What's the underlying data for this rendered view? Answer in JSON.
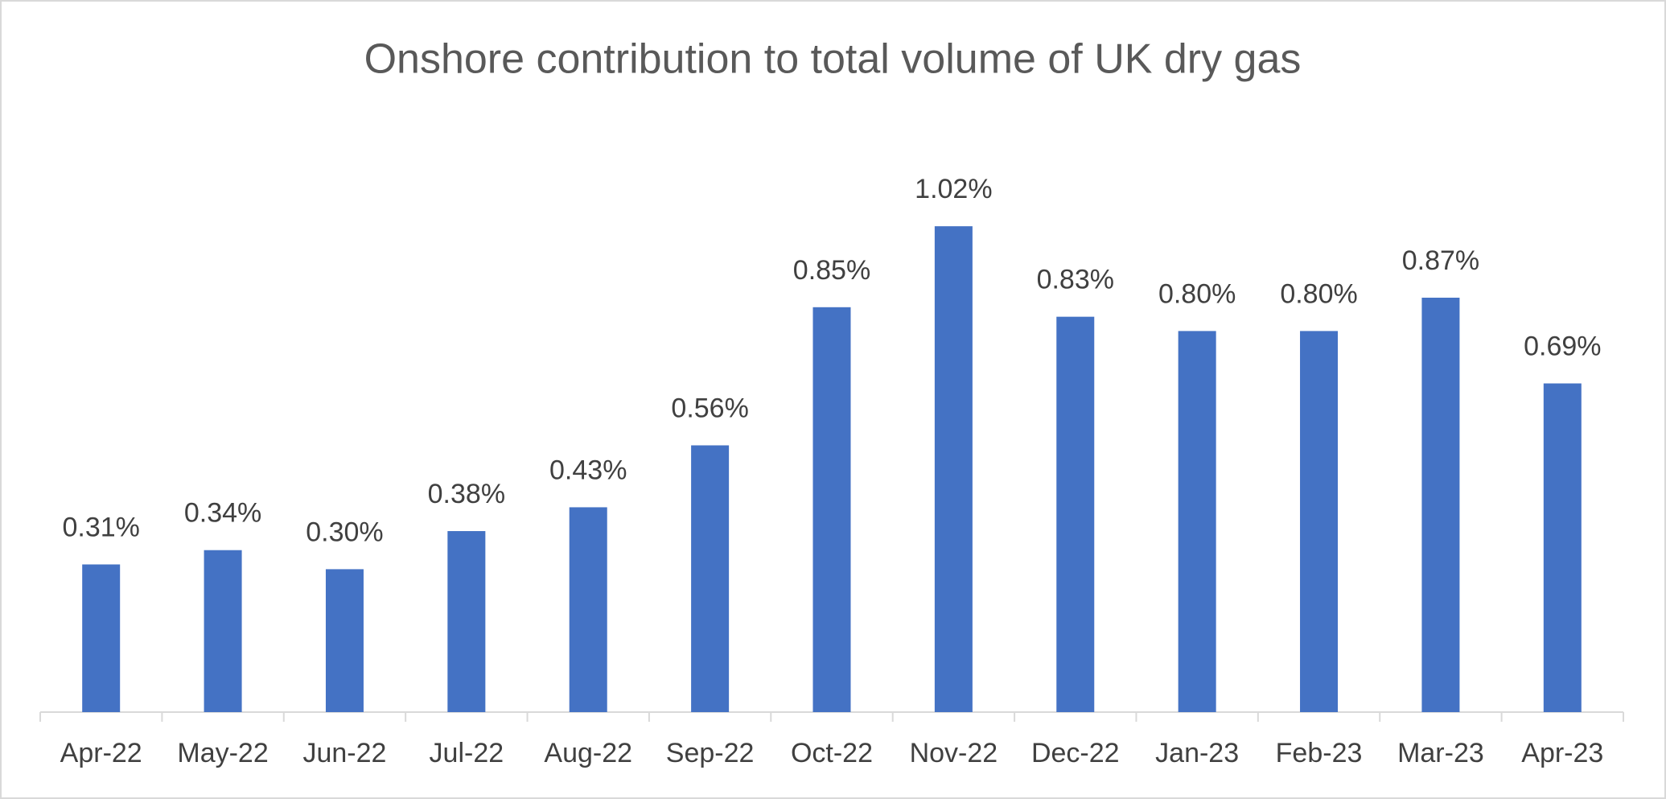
{
  "chart_data": {
    "type": "bar",
    "title": "Onshore contribution to total volume of UK dry gas",
    "categories": [
      "Apr-22",
      "May-22",
      "Jun-22",
      "Jul-22",
      "Aug-22",
      "Sep-22",
      "Oct-22",
      "Nov-22",
      "Dec-22",
      "Jan-23",
      "Feb-23",
      "Mar-23",
      "Apr-23"
    ],
    "values": [
      0.31,
      0.34,
      0.3,
      0.38,
      0.43,
      0.56,
      0.85,
      1.02,
      0.83,
      0.8,
      0.8,
      0.87,
      0.69
    ],
    "value_labels": [
      "0.31%",
      "0.34%",
      "0.30%",
      "0.38%",
      "0.43%",
      "0.56%",
      "0.85%",
      "1.02%",
      "0.83%",
      "0.80%",
      "0.80%",
      "0.87%",
      "0.69%"
    ],
    "color": "#4472c4"
  }
}
